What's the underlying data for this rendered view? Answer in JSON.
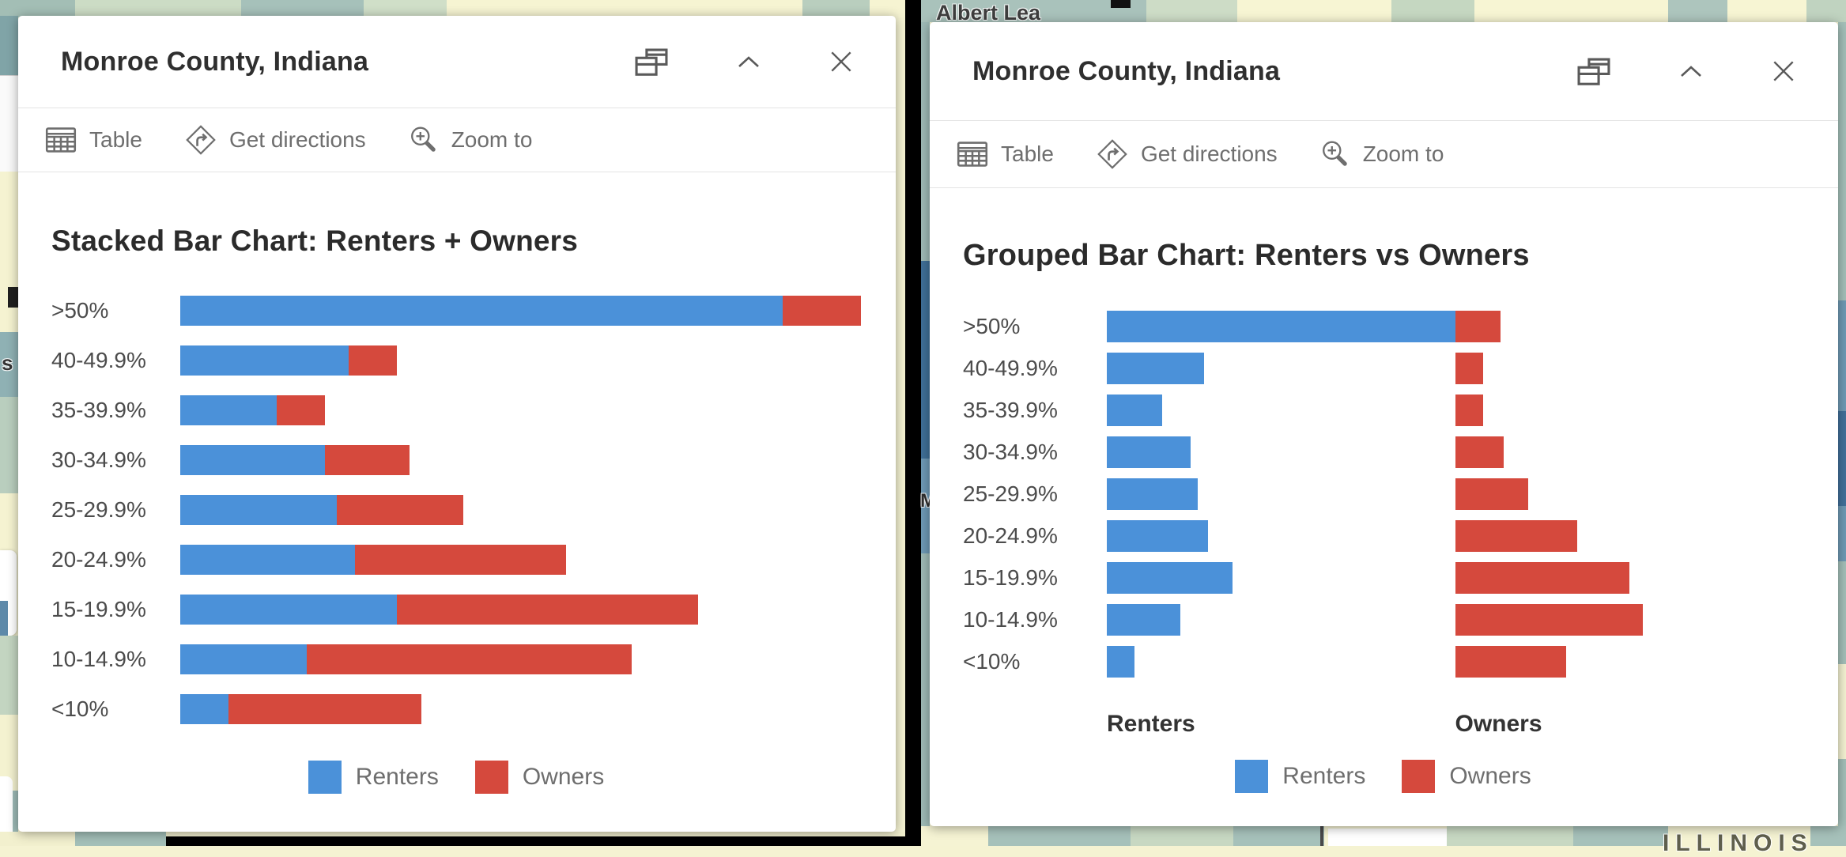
{
  "map": {
    "city_label": "Albert Lea",
    "state_label": "ILLINOIS",
    "partial_label_s": "s",
    "partial_label_m": "M"
  },
  "panels": [
    {
      "title": "Monroe County, Indiana",
      "toolbar": {
        "table": "Table",
        "get_directions": "Get directions",
        "zoom_to": "Zoom to"
      }
    },
    {
      "title": "Monroe County, Indiana",
      "toolbar": {
        "table": "Table",
        "get_directions": "Get directions",
        "zoom_to": "Zoom to"
      }
    }
  ],
  "chart_data": [
    {
      "type": "bar",
      "orientation": "horizontal",
      "mode": "stacked",
      "title": "Stacked Bar Chart: Renters + Owners",
      "categories": [
        ">50%",
        "40-49.9%",
        "35-39.9%",
        "30-34.9%",
        "25-29.9%",
        "20-24.9%",
        "15-19.9%",
        "10-14.9%",
        "<10%"
      ],
      "series": [
        {
          "name": "Renters",
          "color": "#4b91d9",
          "values": [
            100,
            28,
            16,
            24,
            26,
            29,
            36,
            21,
            8
          ]
        },
        {
          "name": "Owners",
          "color": "#d5493d",
          "values": [
            13,
            8,
            8,
            14,
            21,
            35,
            50,
            54,
            32
          ]
        }
      ],
      "value_axis": "hidden",
      "values_note": "relative units estimated from bar lengths; no numeric axis shown in popup",
      "legend_position": "bottom"
    },
    {
      "type": "bar",
      "orientation": "horizontal",
      "mode": "grouped",
      "title": "Grouped Bar Chart: Renters vs Owners",
      "categories": [
        ">50%",
        "40-49.9%",
        "35-39.9%",
        "30-34.9%",
        "25-29.9%",
        "20-24.9%",
        "15-19.9%",
        "10-14.9%",
        "<10%"
      ],
      "series": [
        {
          "name": "Renters",
          "color": "#4b91d9",
          "values": [
            100,
            28,
            16,
            24,
            26,
            29,
            36,
            21,
            8
          ]
        },
        {
          "name": "Owners",
          "color": "#d5493d",
          "values": [
            13,
            8,
            8,
            14,
            21,
            35,
            50,
            54,
            32
          ]
        }
      ],
      "group_captions": [
        "Renters",
        "Owners"
      ],
      "value_axis": "hidden",
      "values_note": "same data as stacked chart; both columns share one scale",
      "legend_position": "bottom"
    }
  ]
}
